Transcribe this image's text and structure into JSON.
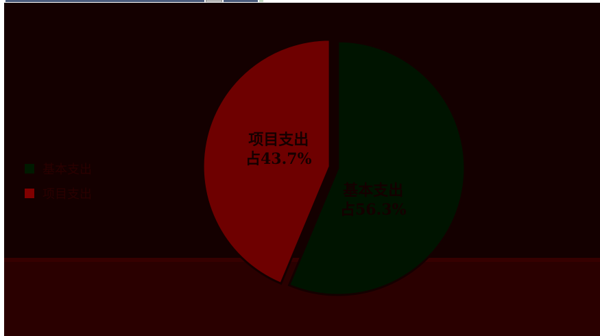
{
  "chart_data": {
    "type": "pie",
    "title": "",
    "legend_position": "left",
    "slices": [
      {
        "name": "基本支出",
        "value": 56.3,
        "label_line1": "基本支出",
        "label_line2": "占56.3%",
        "color": "#001400",
        "label_color": "#140000"
      },
      {
        "name": "项目支出",
        "value": 43.7,
        "label_line1": "项目支出",
        "label_line2": "占43.7%",
        "color": "#6e0000",
        "label_color": "#140000"
      }
    ]
  },
  "legend": {
    "items": [
      {
        "label": "基本支出",
        "color": "#001a00",
        "text_color": "#2a0000"
      },
      {
        "label": "项目支出",
        "color": "#800000",
        "text_color": "#2a0000"
      }
    ]
  },
  "colors": {
    "background": "#140000",
    "bottom_band": "#2a0000",
    "slice_separator": "#140000"
  }
}
